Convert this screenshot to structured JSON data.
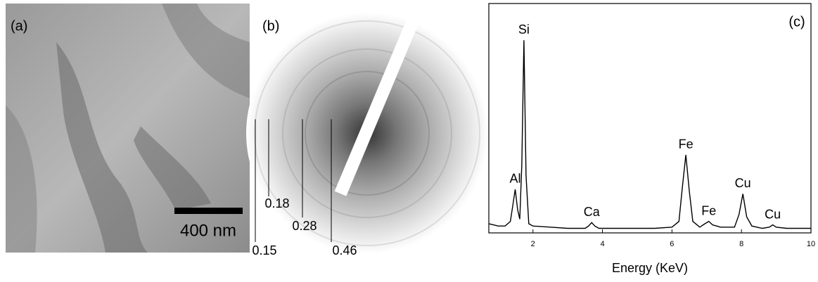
{
  "panel_a": {
    "label": "(a)",
    "scale_bar": "400 nm"
  },
  "panel_b": {
    "label": "(b)",
    "ring_labels": [
      "0.15",
      "0.18",
      "0.28",
      "0.46"
    ]
  },
  "chart_data": {
    "type": "line",
    "label": "(c)",
    "x_label": "Energy (KeV)",
    "x": [
      0.73,
      1.0,
      1.2,
      1.35,
      1.42,
      1.49,
      1.56,
      1.62,
      1.68,
      1.74,
      1.8,
      1.88,
      2.0,
      2.5,
      3.0,
      3.5,
      3.6,
      3.69,
      3.78,
      3.9,
      4.5,
      5.0,
      5.5,
      6.0,
      6.2,
      6.3,
      6.4,
      6.5,
      6.6,
      6.8,
      6.95,
      7.06,
      7.17,
      7.4,
      7.8,
      7.93,
      8.04,
      8.15,
      8.3,
      8.6,
      8.8,
      8.9,
      9.0,
      9.3,
      9.6,
      10.0
    ],
    "values": [
      4,
      3,
      3,
      5,
      12,
      19,
      10,
      6,
      30,
      84,
      25,
      4,
      3,
      2.5,
      2,
      2,
      3,
      4.5,
      3,
      2,
      2,
      2,
      2,
      2.5,
      5,
      20,
      34,
      18,
      5,
      2.5,
      4,
      5,
      3.5,
      2.5,
      2.5,
      8,
      17,
      7,
      3,
      2,
      2.5,
      3.5,
      2.5,
      2,
      2,
      2
    ],
    "color": "#000000",
    "xlim": [
      0.73,
      10
    ],
    "xticks": [
      2,
      4,
      6,
      8,
      10
    ],
    "ylim": [
      0,
      100
    ],
    "peak_labels": [
      {
        "label": "Al",
        "x": 1.49,
        "y": 19
      },
      {
        "label": "Si",
        "x": 1.74,
        "y": 84
      },
      {
        "label": "Ca",
        "x": 3.69,
        "y": 4.5
      },
      {
        "label": "Fe",
        "x": 6.4,
        "y": 34
      },
      {
        "label": "Fe",
        "x": 7.06,
        "y": 5
      },
      {
        "label": "Cu",
        "x": 8.04,
        "y": 17
      },
      {
        "label": "Cu",
        "x": 8.9,
        "y": 3.5
      }
    ]
  }
}
